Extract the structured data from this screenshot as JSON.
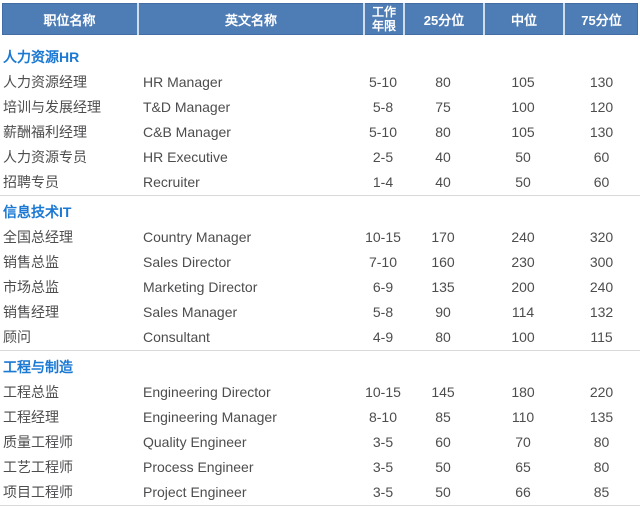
{
  "colors": {
    "header_bg": "#4e7cb5",
    "header_text": "#ffffff",
    "header_separator": "#d0ddee",
    "section_title_text": "#1b79d3",
    "row_text": "#4d4d4f",
    "divider": "#d9d9d9"
  },
  "table": {
    "columns": [
      {
        "label": "职位名称"
      },
      {
        "label": "英文名称"
      },
      {
        "label": "工作\n年限"
      },
      {
        "label": "25分位"
      },
      {
        "label": "中位"
      },
      {
        "label": "75分位"
      }
    ],
    "sections": [
      {
        "title": "人力资源HR",
        "rows": [
          {
            "cn": "人力资源经理",
            "en": "HR Manager",
            "years": "5-10",
            "p25": "80",
            "median": "105",
            "p75": "130"
          },
          {
            "cn": "培训与发展经理",
            "en": "T&D Manager",
            "years": "5-8",
            "p25": "75",
            "median": "100",
            "p75": "120"
          },
          {
            "cn": "薪酬福利经理",
            "en": "C&B Manager",
            "years": "5-10",
            "p25": "80",
            "median": "105",
            "p75": "130"
          },
          {
            "cn": "人力资源专员",
            "en": "HR Executive",
            "years": "2-5",
            "p25": "40",
            "median": "50",
            "p75": "60"
          },
          {
            "cn": "招聘专员",
            "en": "Recruiter",
            "years": "1-4",
            "p25": "40",
            "median": "50",
            "p75": "60"
          }
        ]
      },
      {
        "title": "信息技术IT",
        "rows": [
          {
            "cn": "全国总经理",
            "en": "Country Manager",
            "years": "10-15",
            "p25": "170",
            "median": "240",
            "p75": "320"
          },
          {
            "cn": "销售总监",
            "en": "Sales Director",
            "years": "7-10",
            "p25": "160",
            "median": "230",
            "p75": "300"
          },
          {
            "cn": "市场总监",
            "en": "Marketing Director",
            "years": "6-9",
            "p25": "135",
            "median": "200",
            "p75": "240"
          },
          {
            "cn": "销售经理",
            "en": "Sales Manager",
            "years": "5-8",
            "p25": "90",
            "median": "114",
            "p75": "132"
          },
          {
            "cn": "顾问",
            "en": "Consultant",
            "years": "4-9",
            "p25": "80",
            "median": "100",
            "p75": "115"
          }
        ]
      },
      {
        "title": "工程与制造",
        "rows": [
          {
            "cn": "工程总监",
            "en": "Engineering Director",
            "years": "10-15",
            "p25": "145",
            "median": "180",
            "p75": "220"
          },
          {
            "cn": "工程经理",
            "en": "Engineering Manager",
            "years": "8-10",
            "p25": "85",
            "median": "110",
            "p75": "135"
          },
          {
            "cn": "质量工程师",
            "en": "Quality Engineer",
            "years": "3-5",
            "p25": "60",
            "median": "70",
            "p75": "80"
          },
          {
            "cn": "工艺工程师",
            "en": "Process Engineer",
            "years": "3-5",
            "p25": "50",
            "median": "65",
            "p75": "80"
          },
          {
            "cn": "项目工程师",
            "en": "Project Engineer",
            "years": "3-5",
            "p25": "50",
            "median": "66",
            "p75": "85"
          }
        ]
      }
    ]
  }
}
